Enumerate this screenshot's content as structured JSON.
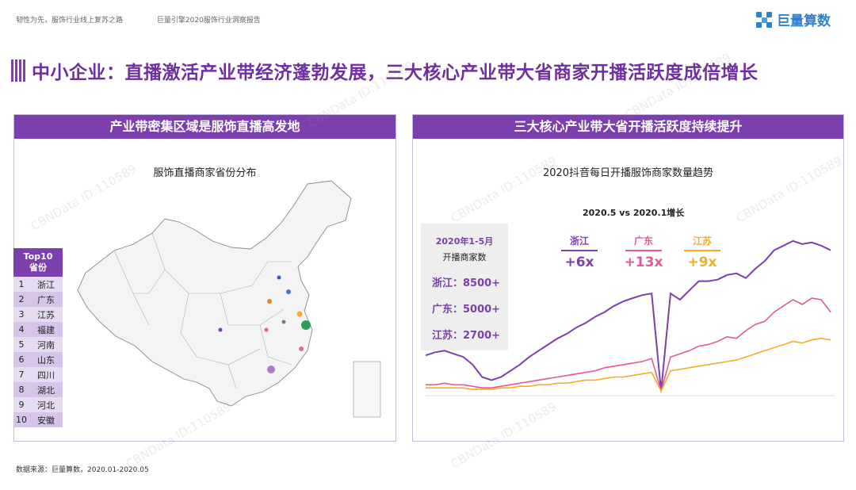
{
  "header": {
    "left_text_1": "韧性为先，服饰行业线上复苏之路",
    "left_text_2": "巨量引擎2020服饰行业洞察报告",
    "brand": "巨量算数"
  },
  "title": "中小企业：直播激活产业带经济蓬勃发展，三大核心产业带大省商家开播活跃度成倍增长",
  "left_panel": {
    "header": "产业带密集区域是服饰直播高发地",
    "subtitle": "服饰直播商家省份分布",
    "top_head_1": "Top10",
    "top_head_2": "省份",
    "top10": [
      {
        "rank": "1",
        "province": "浙江"
      },
      {
        "rank": "2",
        "province": "广东"
      },
      {
        "rank": "3",
        "province": "江苏"
      },
      {
        "rank": "4",
        "province": "福建"
      },
      {
        "rank": "5",
        "province": "河南"
      },
      {
        "rank": "6",
        "province": "山东"
      },
      {
        "rank": "7",
        "province": "四川"
      },
      {
        "rank": "8",
        "province": "湖北"
      },
      {
        "rank": "9",
        "province": "河北"
      },
      {
        "rank": "10",
        "province": "安徽"
      }
    ],
    "colors": {
      "top_odd": "#e6dcf1",
      "top_even": "#d6c5e8"
    }
  },
  "right_panel": {
    "header": "三大核心产业带大省开播活跃度持续提升",
    "subtitle": "2020抖音每日开播服饰商家数量趋势",
    "growth_title": "2020.5 vs 2020.1增长",
    "info": {
      "line1": "2020年1-5月",
      "line2": "开播商家数",
      "rows": [
        "浙江：8500+",
        "广东：5000+",
        "江苏：2700+"
      ]
    },
    "growth": [
      {
        "name": "浙江",
        "value": "+6x",
        "color": "#7b3fae"
      },
      {
        "name": "广东",
        "value": "+13x",
        "color": "#e3589b"
      },
      {
        "name": "江苏",
        "value": "+9x",
        "color": "#f2ae27"
      }
    ]
  },
  "chart_data": {
    "type": "line",
    "title": "2020抖音每日开播服饰商家数量趋势",
    "x_range": [
      "2020/01/01",
      "2020/05/31"
    ],
    "y_axis": "not shown",
    "series": [
      {
        "name": "浙江",
        "color": "#7b3fae",
        "values": [
          0.24,
          0.26,
          0.27,
          0.25,
          0.23,
          0.18,
          0.1,
          0.08,
          0.1,
          0.14,
          0.18,
          0.23,
          0.27,
          0.31,
          0.35,
          0.38,
          0.42,
          0.45,
          0.49,
          0.52,
          0.56,
          0.59,
          0.61,
          0.63,
          0.64,
          0.01,
          0.64,
          0.6,
          0.66,
          0.72,
          0.72,
          0.73,
          0.76,
          0.77,
          0.74,
          0.8,
          0.85,
          0.92,
          0.95,
          0.98,
          0.96,
          0.97,
          0.95,
          0.92
        ]
      },
      {
        "name": "广东",
        "color": "#e3589b",
        "values": [
          0.05,
          0.05,
          0.06,
          0.05,
          0.05,
          0.04,
          0.03,
          0.03,
          0.04,
          0.05,
          0.06,
          0.07,
          0.08,
          0.09,
          0.1,
          0.11,
          0.12,
          0.13,
          0.14,
          0.16,
          0.17,
          0.18,
          0.19,
          0.2,
          0.22,
          0.01,
          0.23,
          0.25,
          0.27,
          0.3,
          0.31,
          0.33,
          0.36,
          0.35,
          0.4,
          0.44,
          0.46,
          0.52,
          0.56,
          0.6,
          0.57,
          0.61,
          0.6,
          0.52
        ]
      },
      {
        "name": "江苏",
        "color": "#f2ae27",
        "values": [
          0.03,
          0.03,
          0.03,
          0.03,
          0.03,
          0.02,
          0.02,
          0.02,
          0.03,
          0.03,
          0.04,
          0.04,
          0.05,
          0.05,
          0.06,
          0.06,
          0.07,
          0.08,
          0.08,
          0.09,
          0.1,
          0.1,
          0.11,
          0.12,
          0.13,
          0.01,
          0.14,
          0.15,
          0.16,
          0.17,
          0.18,
          0.19,
          0.2,
          0.21,
          0.23,
          0.25,
          0.27,
          0.29,
          0.31,
          0.33,
          0.32,
          0.34,
          0.35,
          0.34
        ]
      }
    ]
  },
  "map_data": {
    "provinces": [
      {
        "name": "浙江",
        "color": "#2e9e57",
        "size": 6
      },
      {
        "name": "广东",
        "color": "#b07acb",
        "size": 5
      },
      {
        "name": "江苏",
        "color": "#f2ae27",
        "size": 3.5
      },
      {
        "name": "福建",
        "color": "#e06aa2",
        "size": 3
      },
      {
        "name": "河南",
        "color": "#e08a2e",
        "size": 3
      },
      {
        "name": "山东",
        "color": "#4a6ecf",
        "size": 3
      },
      {
        "name": "四川",
        "color": "#7b3fae",
        "size": 2.5
      },
      {
        "name": "湖北",
        "color": "#e3589b",
        "size": 2.5
      },
      {
        "name": "河北",
        "color": "#3a5fb0",
        "size": 2.5
      },
      {
        "name": "安徽",
        "color": "#7a7a7a",
        "size": 2.5
      }
    ]
  },
  "footer": "数据来源：巨量算数，2020.01-2020.05",
  "watermark": "CBNData ID:110589"
}
